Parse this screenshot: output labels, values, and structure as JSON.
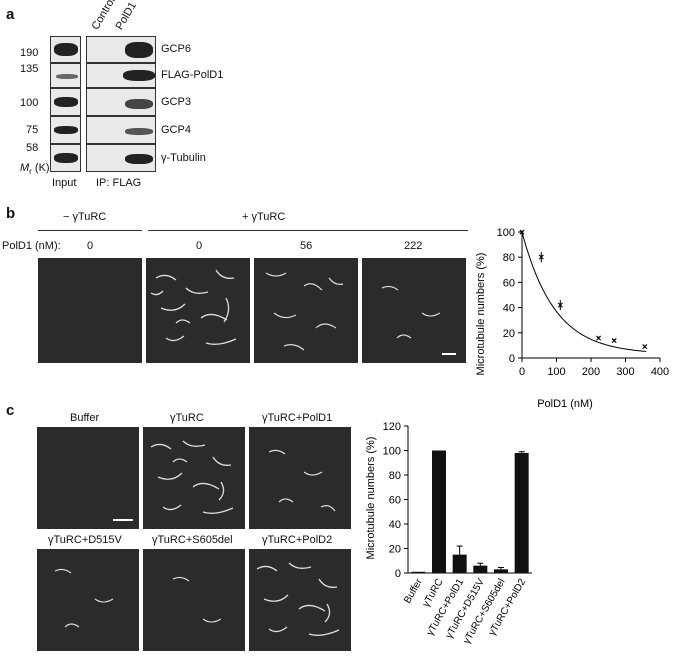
{
  "panel_a": {
    "letter": "a",
    "lane_headers": [
      "Control",
      "PolD1"
    ],
    "mw_markers": [
      "190",
      "135",
      "100",
      "75",
      "58"
    ],
    "mr_label_italic": "M",
    "mr_label_sub": "r",
    "mr_label_unit": "(K)",
    "proteins": [
      "GCP6",
      "FLAG-PolD1",
      "GCP3",
      "GCP4",
      "γ-Tubulin"
    ],
    "x_labels": [
      "Input",
      "IP: FLAG"
    ]
  },
  "panel_b": {
    "letter": "b",
    "group_minus": "− γTuRC",
    "group_plus": "+ γTuRC",
    "conc_label": "PolD1 (nM):",
    "concentrations": [
      "0",
      "0",
      "56",
      "222"
    ]
  },
  "panel_c": {
    "letter": "c",
    "image_labels_top": [
      "Buffer",
      "γTuRC",
      "γTuRC+PolD1"
    ],
    "image_labels_bottom": [
      "γTuRC+D515V",
      "γTuRC+S605del",
      "γTuRC+PolD2"
    ]
  },
  "chart_data": [
    {
      "type": "scatter",
      "title": "",
      "xlabel": "PolD1 (nM)",
      "ylabel": "Microtubule numbers (%)",
      "xlim": [
        0,
        400
      ],
      "ylim": [
        0,
        100
      ],
      "xticks": [
        "0",
        "100",
        "200",
        "300",
        "400"
      ],
      "yticks": [
        "0",
        "20",
        "40",
        "60",
        "80",
        "100"
      ],
      "x": [
        0,
        56,
        111,
        222,
        267,
        356
      ],
      "y": [
        100,
        80,
        42,
        16,
        14,
        9
      ],
      "errors": [
        1,
        4,
        4,
        1,
        1,
        1
      ],
      "fit": "exponential decay"
    },
    {
      "type": "bar",
      "title": "",
      "xlabel": "",
      "ylabel": "Microtubule numbers (%)",
      "ylim": [
        0,
        120
      ],
      "yticks": [
        "0",
        "20",
        "40",
        "60",
        "80",
        "100",
        "120"
      ],
      "categories": [
        "Buffer",
        "γTuRC",
        "γTuRC+PolD1",
        "γTuRC+D515V",
        "γTuRC+S605del",
        "γTuRC+PolD2"
      ],
      "values": [
        1,
        100,
        15,
        6,
        3,
        98
      ],
      "errors": [
        0,
        0,
        7,
        2,
        1.5,
        1
      ]
    }
  ]
}
